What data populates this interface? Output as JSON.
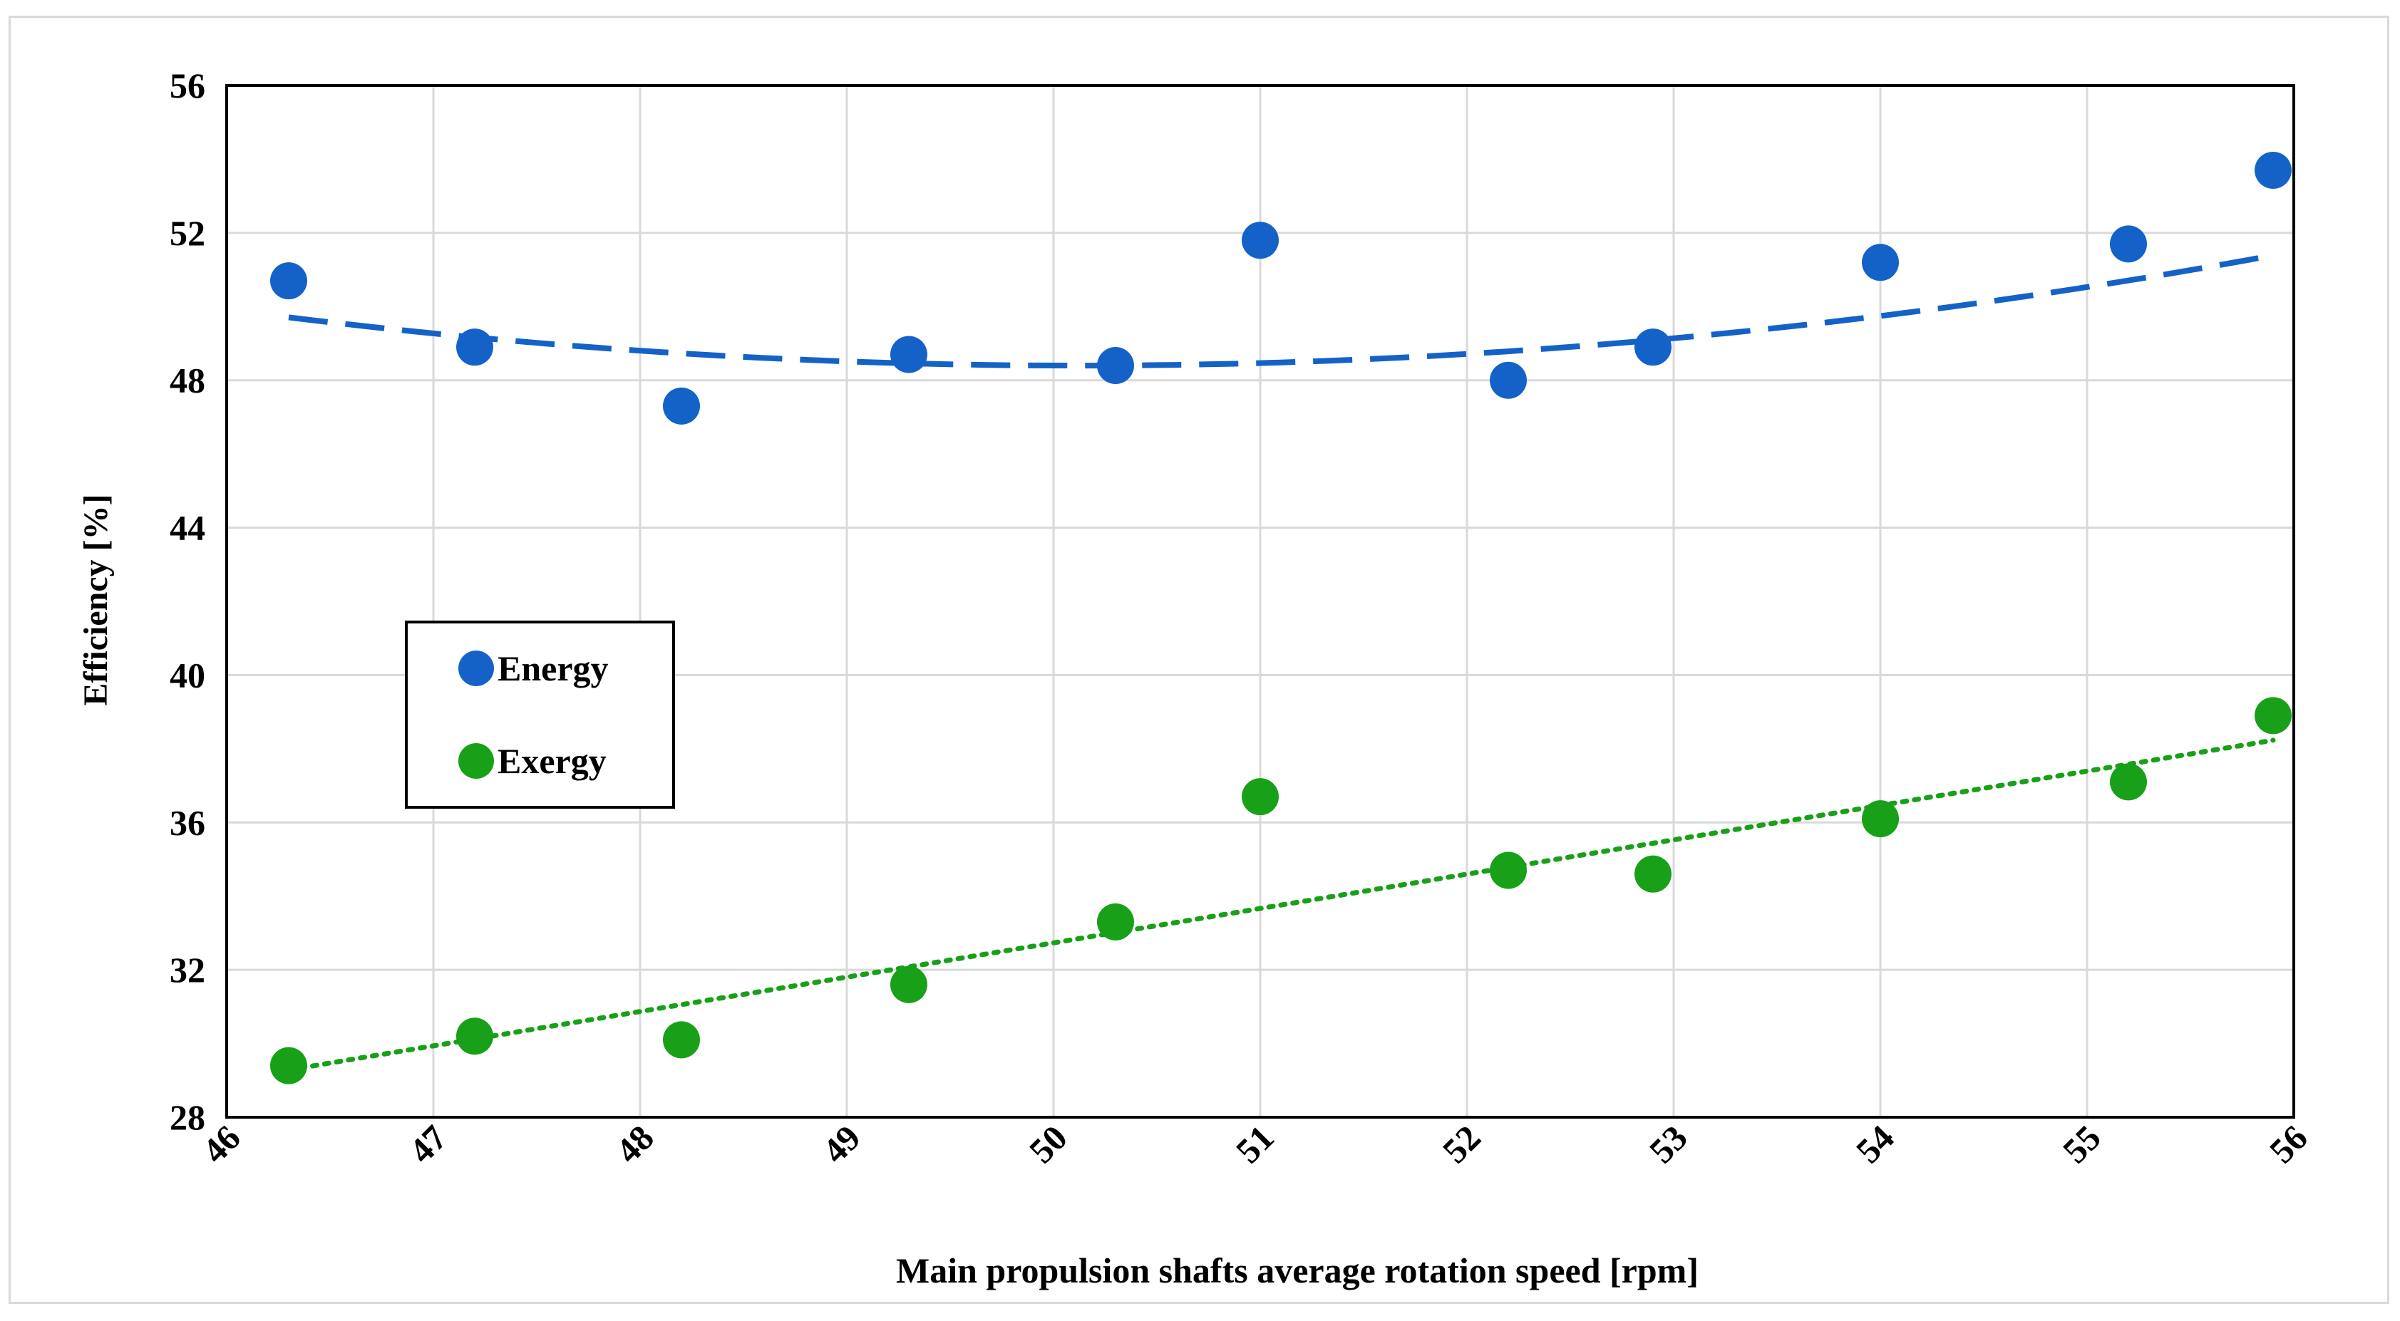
{
  "chart_data": {
    "type": "scatter",
    "title": "",
    "xlabel": "Main propulsion shafts average rotation speed [rpm]",
    "ylabel": "Efficiency [%]",
    "xlim": [
      46,
      56
    ],
    "ylim": [
      28,
      56
    ],
    "xticks": [
      "46",
      "47",
      "48",
      "49",
      "50",
      "51",
      "52",
      "53",
      "54",
      "55",
      "56"
    ],
    "yticks": [
      "28",
      "32",
      "36",
      "40",
      "44",
      "48",
      "52",
      "56"
    ],
    "grid": true,
    "legend_position": "middle-left",
    "series": [
      {
        "name": "Energy",
        "color": "#1462C8",
        "x": [
          46.3,
          47.2,
          48.2,
          49.3,
          50.3,
          51.0,
          52.2,
          52.9,
          54.0,
          55.2,
          55.9
        ],
        "y": [
          50.7,
          48.9,
          47.3,
          48.7,
          48.4,
          51.8,
          48.0,
          48.9,
          51.2,
          51.7,
          53.7
        ],
        "trendline": {
          "kind": "polynomial-2",
          "style": "dashed",
          "coeffs": [
            0.0896,
            -8.982,
            273.5
          ]
        }
      },
      {
        "name": "Exergy",
        "color": "#18A018",
        "x": [
          46.3,
          47.2,
          48.2,
          49.3,
          50.3,
          51.0,
          52.2,
          52.9,
          54.0,
          55.2,
          55.9
        ],
        "y": [
          29.4,
          30.2,
          30.1,
          31.6,
          33.3,
          36.7,
          34.7,
          34.6,
          36.1,
          37.1,
          38.9
        ],
        "trendline": {
          "kind": "linear",
          "style": "dotted",
          "coeffs": [
            0.932,
            -13.867
          ]
        }
      }
    ]
  }
}
